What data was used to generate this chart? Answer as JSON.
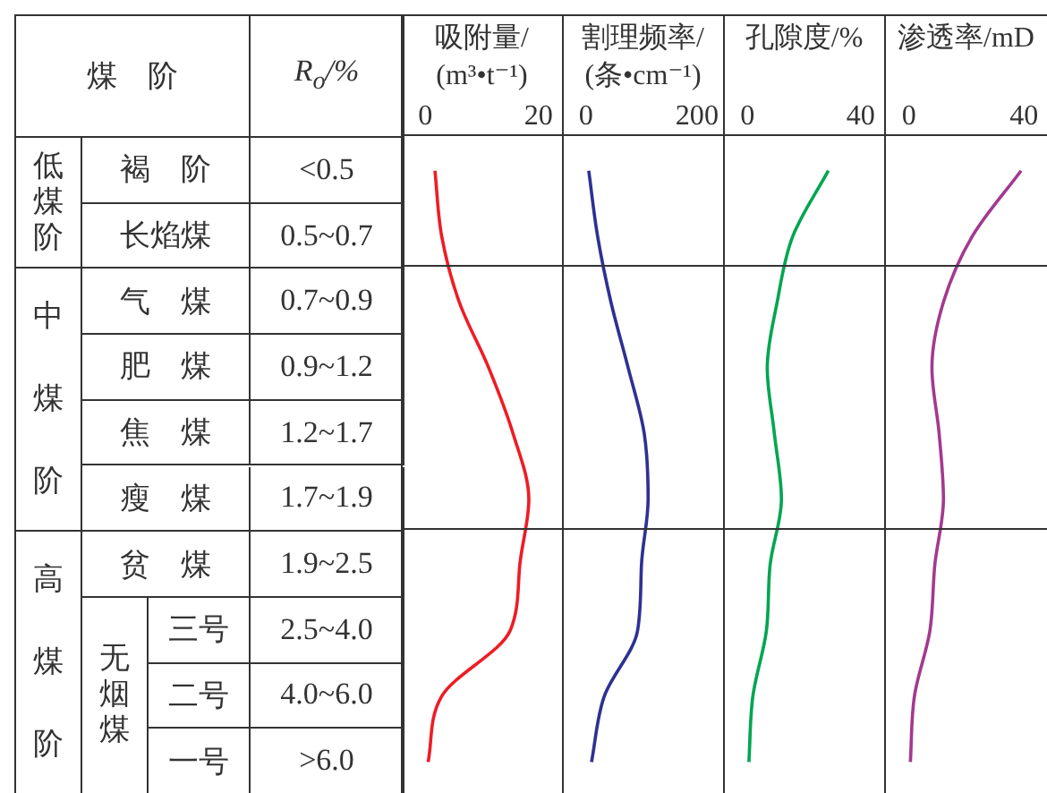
{
  "chart_data": [
    {
      "type": "other",
      "annotations": [
        "煤　阶",
        "R$_{o}$/%",
        "低煤阶",
        "中煤阶",
        "高煤阶",
        "无烟煤",
        "褐　阶",
        "长焰煤",
        "气　煤",
        "肥　煤",
        "焦　煤",
        "瘦　煤",
        "贫　煤",
        "三号",
        "二号",
        "一号"
      ]
    },
    {
      "type": "line",
      "orientation": "horizontal",
      "xlabel": "吸附量/(m³•t⁻¹)",
      "categories": [
        "<0.5",
        "0.5~0.7",
        "0.7~0.9",
        "0.9~1.2",
        "1.2~1.7",
        "1.7~1.9",
        "1.9~2.5",
        "2.5~4.0",
        "4.0~6.0",
        ">6.0"
      ],
      "xlim": [
        -4,
        24
      ],
      "xticks": [
        0,
        20
      ],
      "tick_labels": "x",
      "marker": "none",
      "series": [
        {
          "color": "#ee1c25",
          "values": [
            1.7,
            2.9,
            6,
            11.2,
            15.5,
            18.3,
            16.7,
            15,
            2.9,
            0.5
          ]
        }
      ]
    },
    {
      "type": "line",
      "orientation": "horizontal",
      "xlabel": "割理频率/(条•cm⁻¹)",
      "categories": [
        "<0.5",
        "0.5~0.7",
        "0.7~0.9",
        "0.9~1.2",
        "1.2~1.7",
        "1.7~1.9",
        "1.9~2.5",
        "2.5~4.0",
        "4.0~6.0",
        ">6.0"
      ],
      "xlim": [
        -40,
        240
      ],
      "xticks": [
        0,
        200
      ],
      "tick_labels": "x",
      "marker": "none",
      "series": [
        {
          "color": "#2e3192",
          "values": [
            5,
            21,
            45,
            76,
            105,
            112,
            100,
            93,
            33,
            10
          ]
        }
      ]
    },
    {
      "type": "line",
      "orientation": "horizontal",
      "xlabel": "孔隙度/%",
      "categories": [
        "<0.5",
        "0.5~0.7",
        "0.7~0.9",
        "0.9~1.2",
        "1.2~1.7",
        "1.7~1.9",
        "1.9~2.5",
        "2.5~4.0",
        "4.0~6.0",
        ">6.0"
      ],
      "xlim": [
        -8,
        48
      ],
      "xticks": [
        0,
        40
      ],
      "tick_labels": "x",
      "marker": "none",
      "series": [
        {
          "color": "#00a650",
          "values": [
            28.6,
            16,
            10.5,
            7,
            9.5,
            12,
            8,
            6.7,
            1.9,
            0.5
          ]
        }
      ]
    },
    {
      "type": "line",
      "orientation": "horizontal",
      "xlabel": "渗透率/mD",
      "categories": [
        "<0.5",
        "0.5~0.7",
        "0.7~0.9",
        "0.9~1.2",
        "1.2~1.7",
        "1.7~1.9",
        "1.9~2.5",
        "2.5~4.0",
        "4.0~6.0",
        ">6.0"
      ],
      "xlim": [
        -8,
        48
      ],
      "xticks": [
        0,
        40
      ],
      "tick_labels": "x",
      "marker": "none",
      "series": [
        {
          "color": "#a3398f",
          "values": [
            39,
            22,
            12,
            8,
            10.5,
            12,
            9,
            7.3,
            1.9,
            0.5
          ]
        }
      ]
    }
  ]
}
